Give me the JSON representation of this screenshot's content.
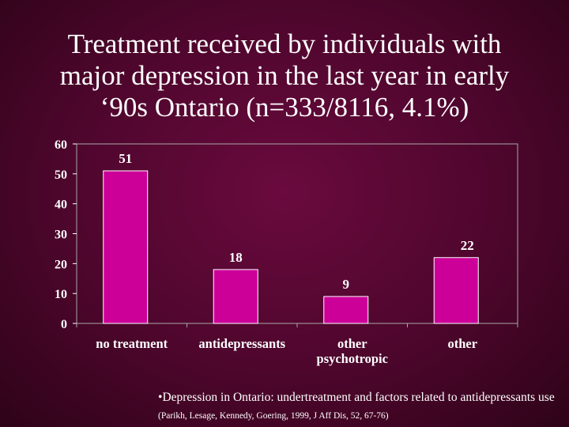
{
  "title_lines": [
    "Treatment received by individuals with",
    "major depression in the last year in early",
    "‘90s Ontario (n=333/8116, 4.1%)"
  ],
  "chart_data": {
    "type": "bar",
    "categories": [
      [
        "no treatment"
      ],
      [
        "antidepressants"
      ],
      [
        "other",
        "psychotropic"
      ],
      [
        "other"
      ]
    ],
    "values": [
      51,
      18,
      9,
      22
    ],
    "ylim": [
      0,
      60
    ],
    "yticks": [
      0,
      10,
      20,
      30,
      40,
      50,
      60
    ],
    "grid": false,
    "legend": "none",
    "bar_color": "#cc0099"
  },
  "footnote": {
    "bullet": "•",
    "main": "Depression in Ontario: undertreatment and factors related to antidepressants use",
    "citation": "(Parikh, Lesage, Kennedy, Goering, 1999, J Aff Dis, 52, 67-76)"
  }
}
